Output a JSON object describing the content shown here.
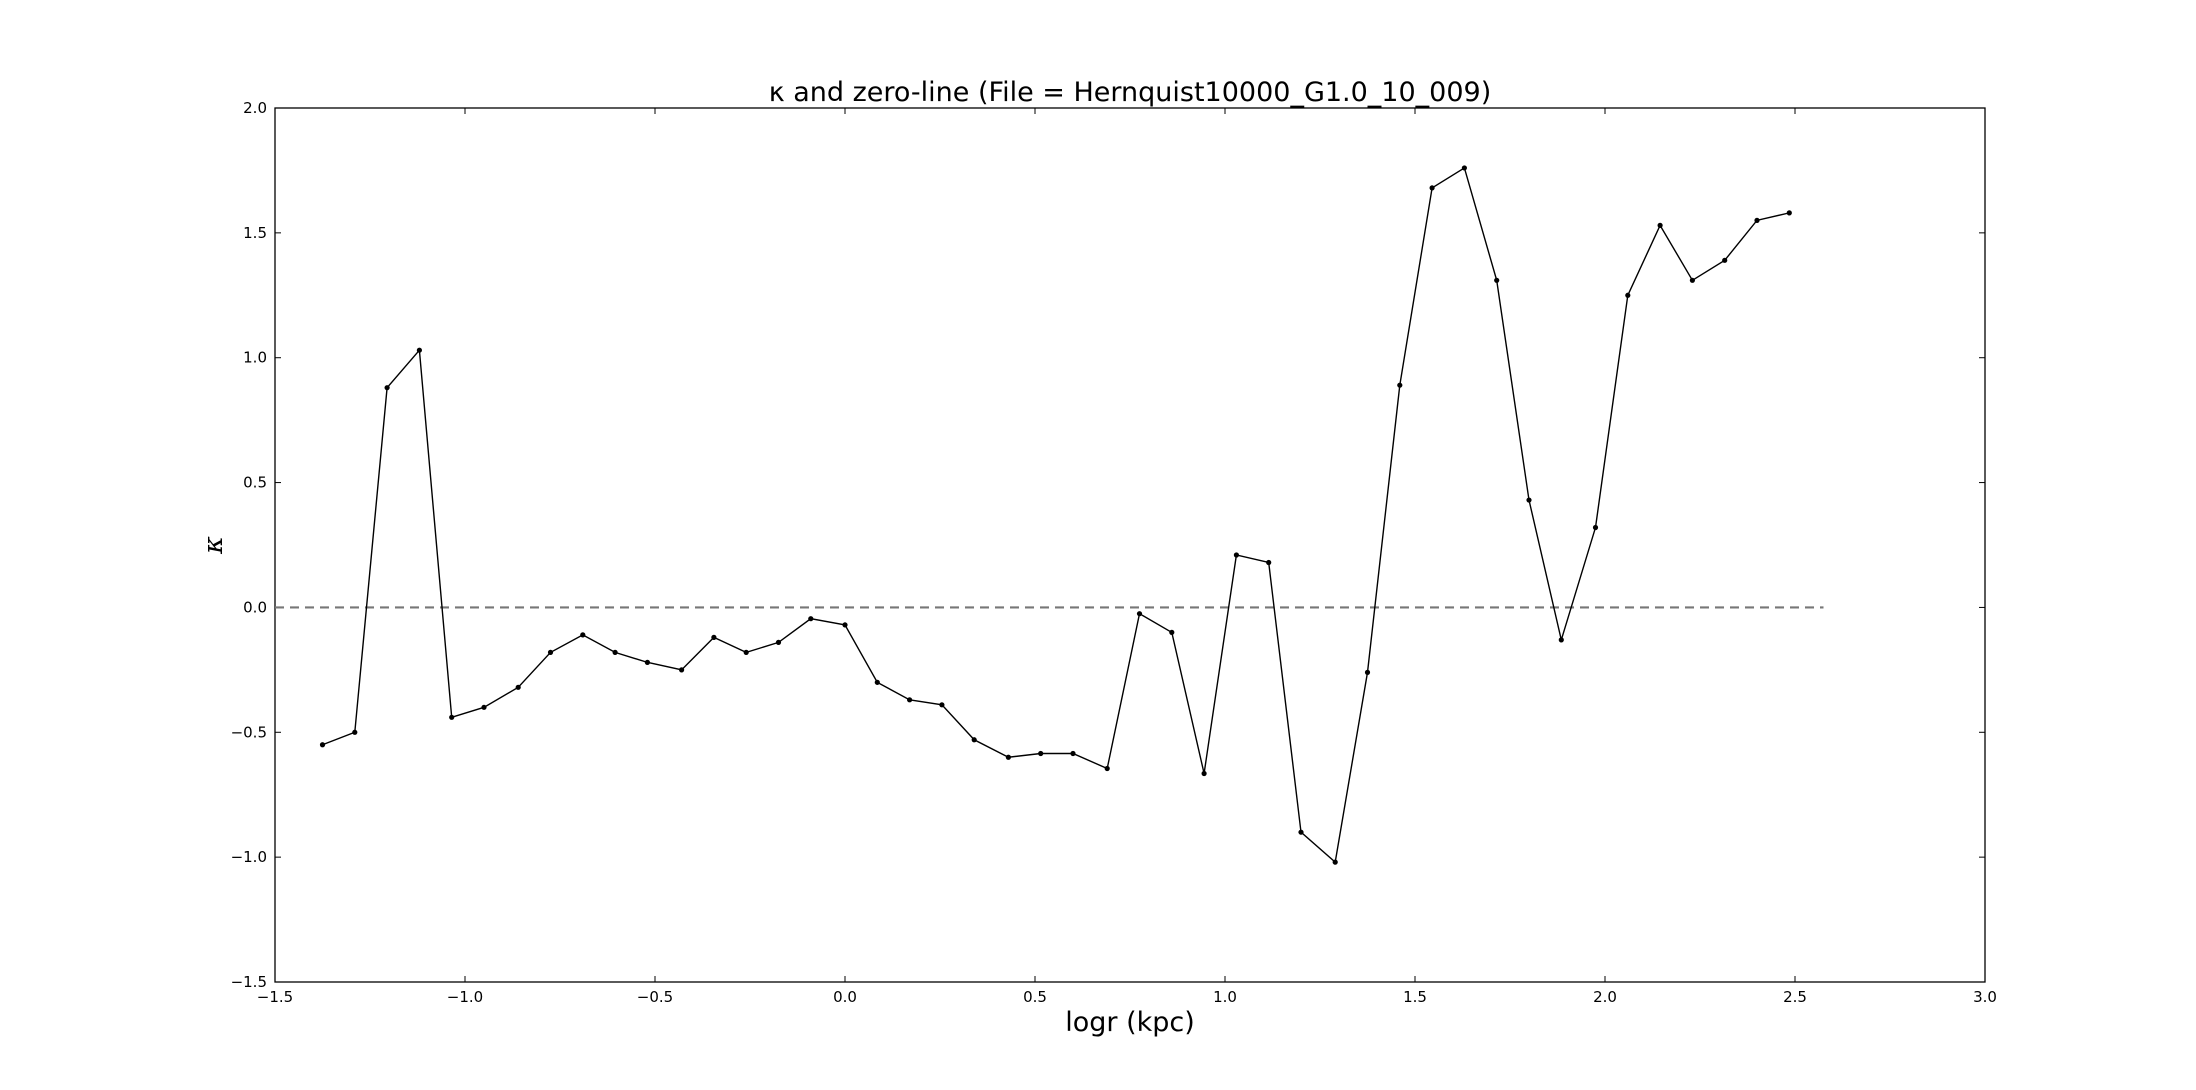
{
  "chart_data": {
    "type": "line",
    "title": "κ and zero-line (File = Hernquist10000_G1.0_10_009)",
    "xlabel": "logr (kpc)",
    "ylabel": "κ",
    "xlim": [
      -1.5,
      3.0
    ],
    "ylim": [
      -1.5,
      2.0
    ],
    "x_ticks": [
      "−1.5",
      "−1.0",
      "−0.5",
      "0.0",
      "0.5",
      "1.0",
      "1.5",
      "2.0",
      "2.5",
      "3.0"
    ],
    "y_ticks": [
      "−1.5",
      "−1.0",
      "−0.5",
      "0.0",
      "0.5",
      "1.0",
      "1.5",
      "2.0"
    ],
    "grid": false,
    "series": [
      {
        "color": "#000000",
        "style": "solid-with-point-markers",
        "x": [
          -1.375,
          -1.29,
          -1.205,
          -1.12,
          -1.035,
          -0.95,
          -0.86,
          -0.775,
          -0.69,
          -0.605,
          -0.52,
          -0.43,
          -0.345,
          -0.26,
          -0.175,
          -0.09,
          0.0,
          0.085,
          0.17,
          0.255,
          0.34,
          0.43,
          0.515,
          0.6,
          0.69,
          0.775,
          0.86,
          0.945,
          1.03,
          1.115,
          1.2,
          1.29,
          1.375,
          1.46,
          1.545,
          1.63,
          1.715,
          1.8,
          1.885,
          1.975,
          2.06,
          2.145,
          2.23,
          2.315,
          2.4,
          2.485
        ],
        "y": [
          -0.55,
          -0.5,
          0.88,
          1.03,
          -0.44,
          -0.4,
          -0.32,
          -0.18,
          -0.11,
          -0.18,
          -0.22,
          -0.25,
          -0.12,
          -0.18,
          -0.14,
          -0.045,
          -0.07,
          -0.3,
          -0.37,
          -0.39,
          -0.53,
          -0.6,
          -0.585,
          -0.585,
          -0.645,
          -0.025,
          -0.1,
          -0.665,
          0.21,
          0.18,
          -0.9,
          -1.02,
          -0.26,
          0.89,
          1.68,
          1.76,
          1.31,
          0.43,
          -0.13,
          0.32,
          1.25,
          1.53,
          1.31,
          1.39,
          1.55,
          1.58
        ]
      },
      {
        "color": "#777777",
        "style": "dashed",
        "x": [
          -1.5,
          2.575
        ],
        "y": [
          0.0,
          0.0
        ]
      }
    ]
  }
}
